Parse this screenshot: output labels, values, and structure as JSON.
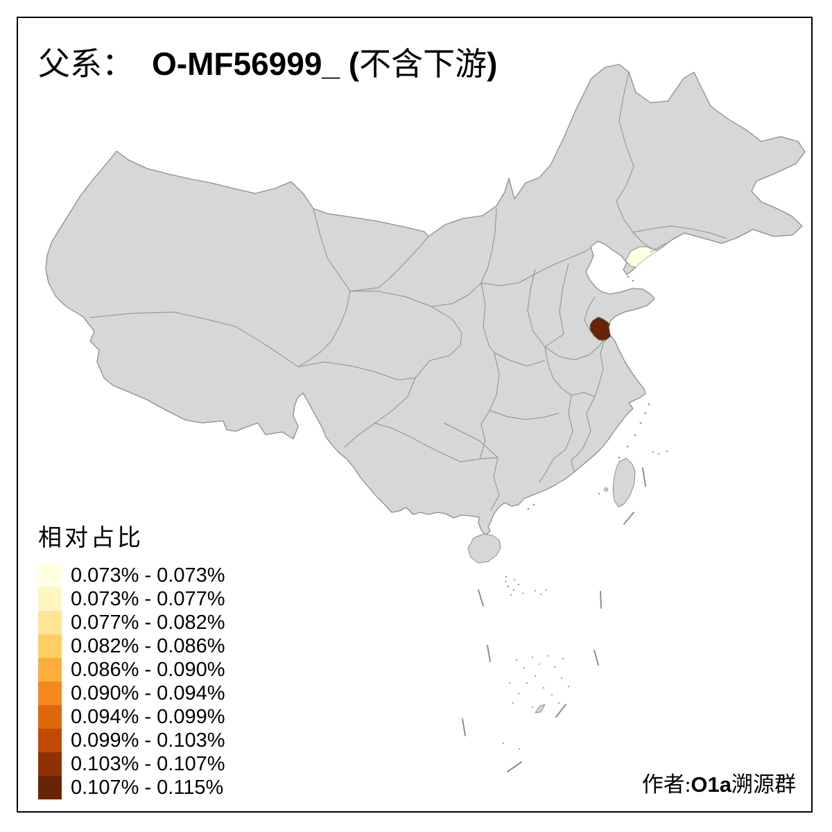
{
  "title": {
    "cjk1": "父系：",
    "latin1": "O-MF56999_ (",
    "cjk2": "不含下游",
    "latin2": ")"
  },
  "legend": {
    "title": "相对占比",
    "items": [
      {
        "label": "0.073% - 0.073%",
        "color": "#FFFFE2"
      },
      {
        "label": "0.073% - 0.077%",
        "color": "#FEF5BF"
      },
      {
        "label": "0.077% - 0.082%",
        "color": "#FEE593"
      },
      {
        "label": "0.082% - 0.086%",
        "color": "#FECF62"
      },
      {
        "label": "0.086% - 0.090%",
        "color": "#FDAD3C"
      },
      {
        "label": "0.090% - 0.094%",
        "color": "#F5881F"
      },
      {
        "label": "0.094% - 0.099%",
        "color": "#E0660C"
      },
      {
        "label": "0.099% - 0.103%",
        "color": "#C14903"
      },
      {
        "label": "0.103% - 0.107%",
        "color": "#903105"
      },
      {
        "label": "0.107% - 0.115%",
        "color": "#652506"
      }
    ]
  },
  "credit": {
    "cjk1": "作者:",
    "latin": "O1a",
    "cjk2": "溯源群"
  },
  "map": {
    "land_fill": "#d7d7d7",
    "border_color": "#8c8c8c",
    "background": "#ffffff",
    "frame_color": "#000000",
    "highlighted_regions": [
      {
        "name": "liaodong-peninsula-area",
        "value_range": "0.073% - 0.073%",
        "class_index": 0,
        "color": "#FFFFE2"
      },
      {
        "name": "south-shandong-coast-area",
        "value_range": "0.107% - 0.115%",
        "class_index": 9,
        "color": "#652506"
      }
    ]
  }
}
